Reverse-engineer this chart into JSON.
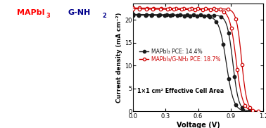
{
  "xlabel": "Voltage (V)",
  "ylabel": "Current density (mA cm⁻²)",
  "xlim": [
    0.0,
    1.2
  ],
  "ylim": [
    0.0,
    23.5
  ],
  "xticks": [
    0.0,
    0.3,
    0.6,
    0.9,
    1.2
  ],
  "yticks": [
    0,
    5,
    10,
    15,
    20
  ],
  "legend1": "MAPbI₃ PCE: 14.4%",
  "legend2": "MAPbI₃/G-NH₂ PCE: 18.7%",
  "annotation": "1×1 cm² Effective Cell Area",
  "color_black": "#1a1a1a",
  "color_red": "#cc0000",
  "title_mapl": "MAPbI",
  "title_mapl_sub": "3",
  "title_gnh": "G-NH",
  "title_gnh_sub": "2",
  "jsc_black": 21.2,
  "jsc_red": 22.6,
  "voc_black": 1.06,
  "voc_red": 1.14,
  "voc_black2": 1.0,
  "voc_red2": 1.09,
  "jsc_black2": 21.0,
  "jsc_red2": 22.4,
  "slope_black": 38.0,
  "slope_red": 42.0,
  "slope_black2": 30.0,
  "slope_red2": 34.0,
  "mid_black": 0.92,
  "mid_red": 1.0,
  "mid_black2": 0.86,
  "mid_red2": 0.95,
  "background": "#ffffff"
}
